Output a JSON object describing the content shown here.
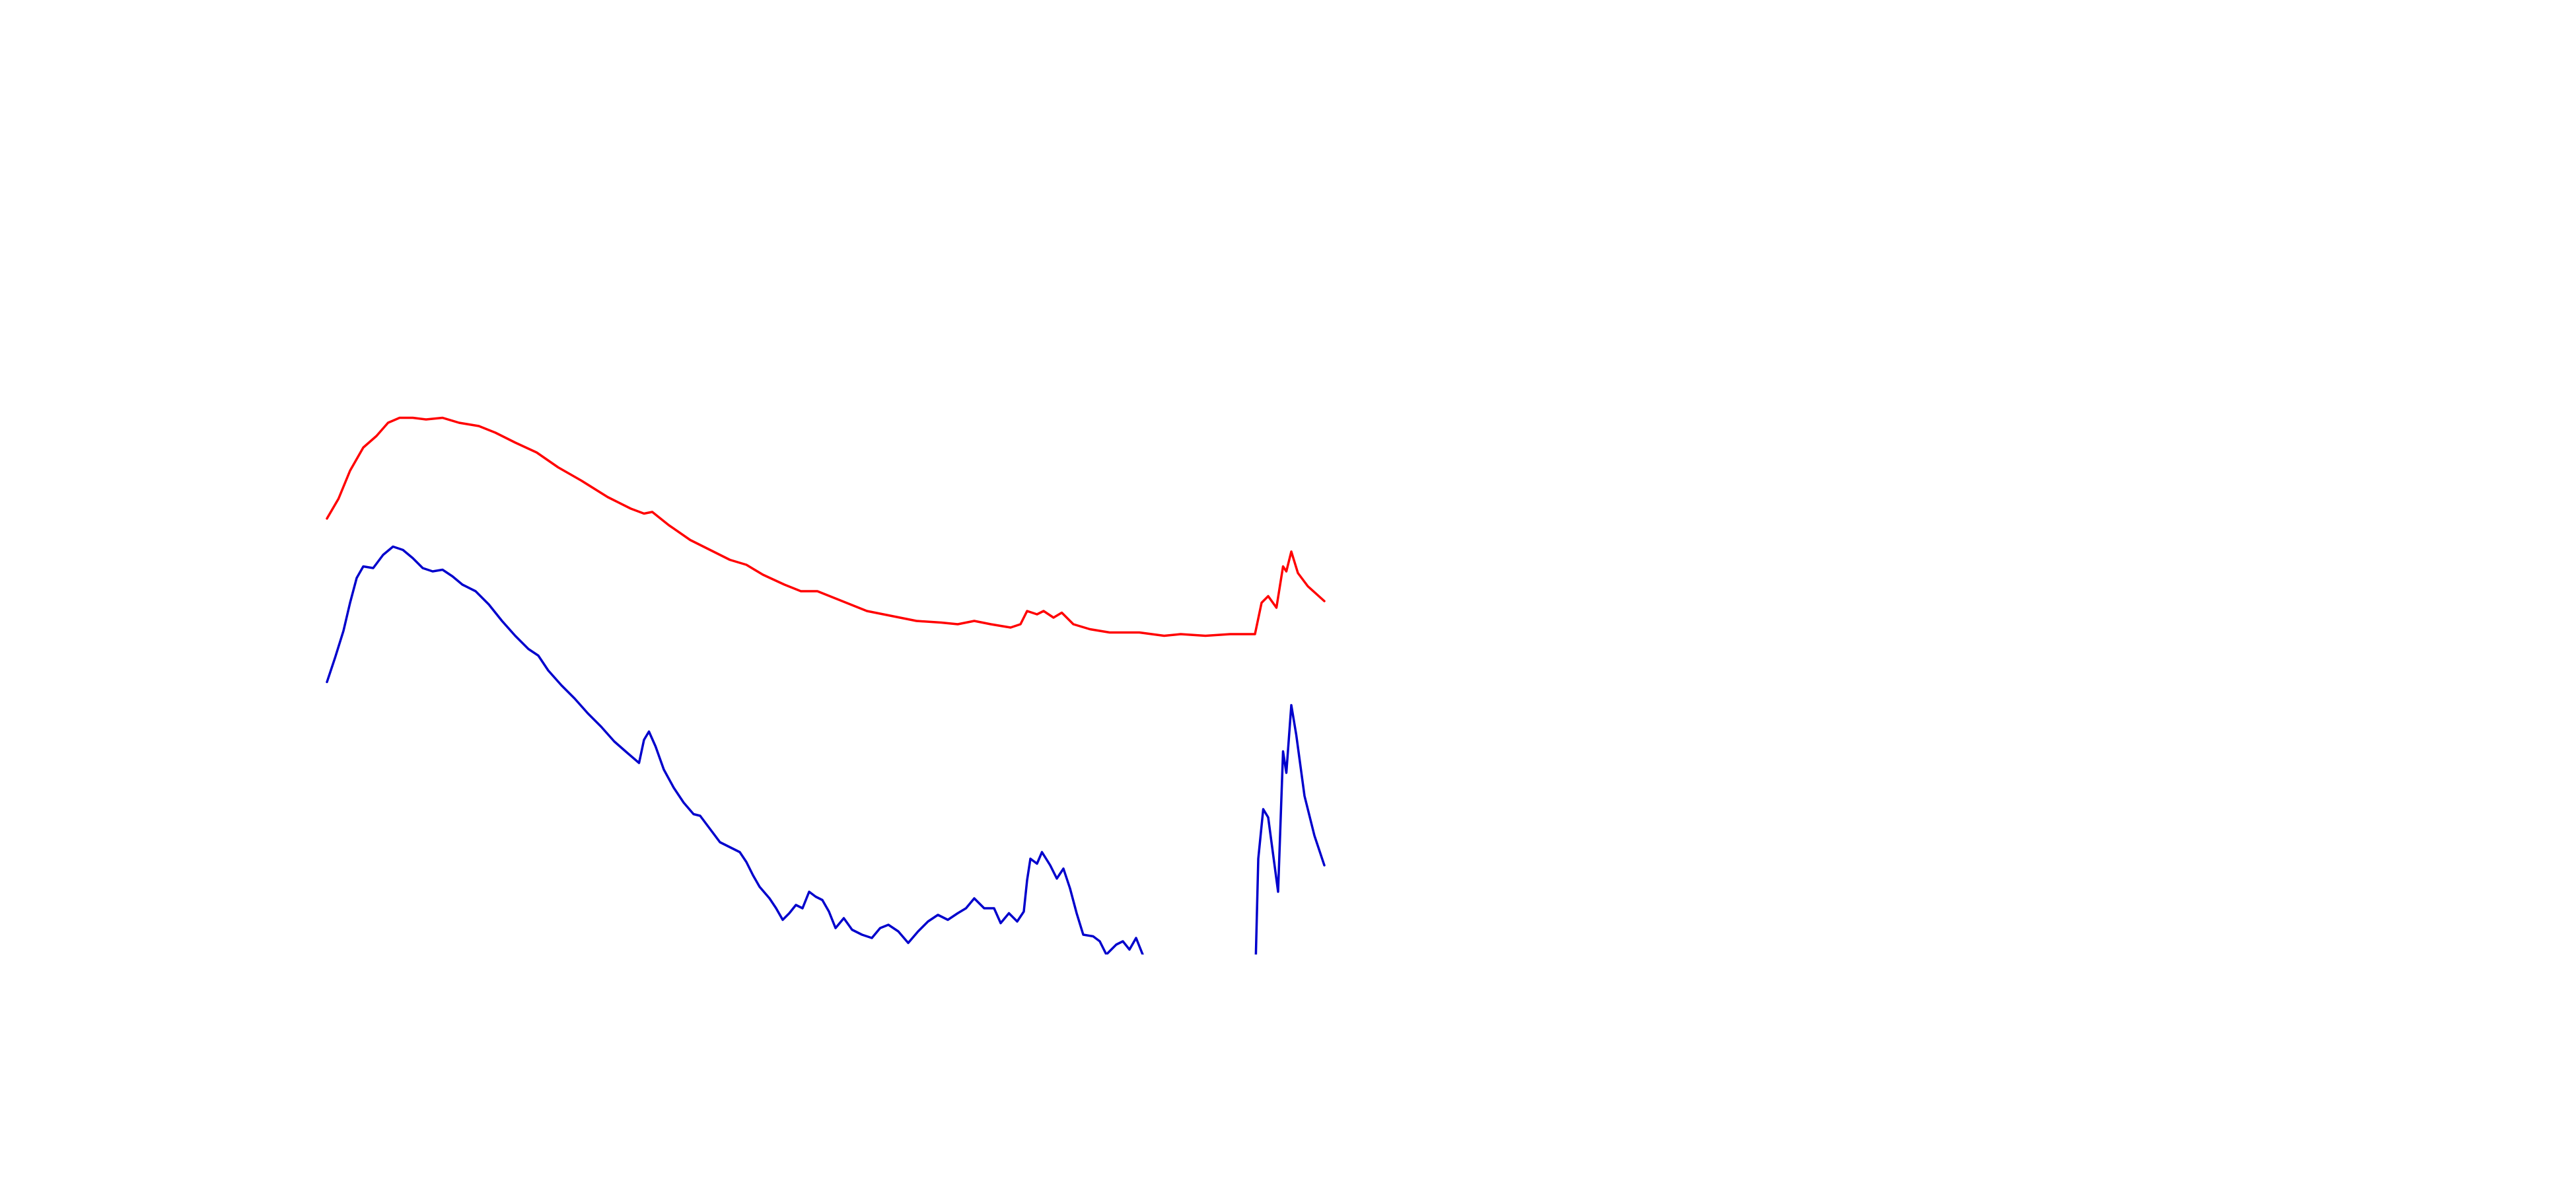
{
  "chart_data": {
    "type": "line",
    "xlim": [
      198,
      802
    ],
    "ylim": [
      0,
      578
    ],
    "series": [
      {
        "color": "#ff0000",
        "x": [
          198,
          205,
          212,
          220,
          228,
          235,
          242,
          250,
          258,
          268,
          278,
          290,
          300,
          312,
          325,
          338,
          352,
          368,
          382,
          390,
          395,
          405,
          418,
          430,
          442,
          452,
          462,
          475,
          485,
          495,
          505,
          515,
          525,
          540,
          555,
          570,
          580,
          590,
          600,
          612,
          618,
          622,
          628,
          632,
          638,
          643,
          650,
          660,
          672,
          690,
          705,
          715,
          730,
          745,
          760,
          764,
          768,
          773,
          777,
          779,
          782,
          786,
          792,
          802
        ],
        "values": [
          264,
          276,
          293,
          307,
          314,
          322,
          325,
          325,
          324,
          325,
          322,
          320,
          316,
          310,
          304,
          295,
          287,
          277,
          270,
          267,
          268,
          260,
          251,
          245,
          239,
          236,
          230,
          224,
          220,
          220,
          216,
          212,
          208,
          205,
          202,
          201,
          200,
          202,
          200,
          198,
          200,
          208,
          206,
          208,
          204,
          207,
          200,
          197,
          195,
          195,
          193,
          194,
          193,
          194,
          194,
          213,
          217,
          210,
          235,
          232,
          244,
          231,
          223,
          214
        ]
      },
      {
        "color": "#0000cc",
        "x": [
          198,
          203,
          208,
          212,
          216,
          220,
          226,
          232,
          238,
          244,
          250,
          256,
          262,
          268,
          274,
          280,
          288,
          296,
          304,
          312,
          320,
          326,
          332,
          340,
          348,
          356,
          364,
          372,
          380,
          387,
          390,
          393,
          397,
          402,
          408,
          414,
          420,
          424,
          430,
          436,
          442,
          448,
          452,
          456,
          460,
          466,
          470,
          474,
          478,
          482,
          486,
          490,
          494,
          498,
          502,
          506,
          511,
          516,
          522,
          528,
          533,
          538,
          544,
          550,
          556,
          562,
          568,
          574,
          580,
          585,
          590,
          596,
          602,
          606,
          611,
          616,
          620,
          622,
          624,
          628,
          631,
          636,
          640,
          644,
          648,
          652,
          656,
          662,
          666,
          670,
          676,
          680,
          684,
          688,
          692,
          700,
          735,
          760,
          762,
          765,
          768,
          774,
          777,
          779,
          782,
          785,
          790,
          796,
          802
        ],
        "values": [
          165,
          180,
          196,
          213,
          228,
          235,
          234,
          242,
          247,
          245,
          240,
          234,
          232,
          233,
          229,
          224,
          220,
          212,
          202,
          193,
          185,
          181,
          172,
          163,
          155,
          146,
          138,
          129,
          122,
          116,
          130,
          135,
          126,
          112,
          101,
          92,
          85,
          84,
          76,
          68,
          65,
          62,
          56,
          48,
          41,
          34,
          28,
          21,
          25,
          30,
          28,
          38,
          35,
          33,
          26,
          16,
          22,
          15,
          12,
          10,
          16,
          18,
          14,
          7,
          14,
          20,
          24,
          21,
          25,
          28,
          34,
          28,
          28,
          19,
          25,
          20,
          26,
          45,
          58,
          55,
          62,
          54,
          46,
          52,
          40,
          25,
          12,
          11,
          8,
          0,
          6,
          8,
          3,
          10,
          0,
          -22,
          -22,
          -22,
          58,
          88,
          83,
          38,
          123,
          110,
          151,
          133,
          96,
          72,
          54
        ]
      }
    ]
  }
}
